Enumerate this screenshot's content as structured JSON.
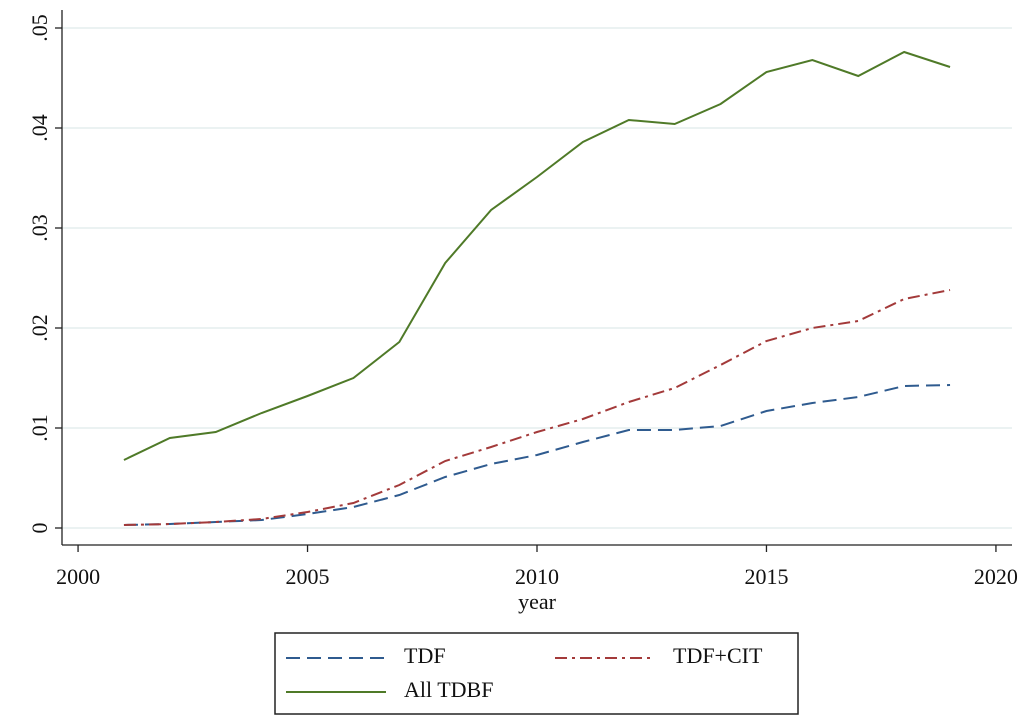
{
  "chart_data": {
    "type": "line",
    "x_label": "year",
    "x": [
      2001,
      2002,
      2003,
      2004,
      2005,
      2006,
      2007,
      2008,
      2009,
      2010,
      2011,
      2012,
      2013,
      2014,
      2015,
      2016,
      2017,
      2018,
      2019
    ],
    "series": [
      {
        "name": "TDF",
        "color": "#2f5b8f",
        "dash": "dash",
        "values": [
          0.0003,
          0.0004,
          0.0006,
          0.0008,
          0.0014,
          0.0021,
          0.0033,
          0.0051,
          0.0064,
          0.0073,
          0.0086,
          0.0098,
          0.0098,
          0.0102,
          0.0117,
          0.0125,
          0.0131,
          0.0142,
          0.0143
        ]
      },
      {
        "name": "TDF+CIT",
        "color": "#a33a3a",
        "dash": "dashdot",
        "values": [
          0.0003,
          0.0004,
          0.0006,
          0.0009,
          0.0016,
          0.0025,
          0.0043,
          0.0067,
          0.0081,
          0.0096,
          0.0109,
          0.0126,
          0.014,
          0.0163,
          0.0187,
          0.02,
          0.0207,
          0.0229,
          0.0238
        ]
      },
      {
        "name": "All TDBF",
        "color": "#4f7a28",
        "dash": "solid",
        "values": [
          0.0068,
          0.009,
          0.0096,
          0.0115,
          0.0132,
          0.015,
          0.0186,
          0.0265,
          0.0318,
          0.0351,
          0.0386,
          0.0408,
          0.0404,
          0.0424,
          0.0456,
          0.0468,
          0.0452,
          0.0476,
          0.0461
        ]
      }
    ],
    "xlim": [
      1999.65,
      2020.35
    ],
    "ylim": [
      -0.0017,
      0.0518
    ],
    "xticks": [
      2000,
      2005,
      2010,
      2015,
      2020
    ],
    "yticks": [
      0,
      {
        "value": 0.01,
        "label": ".01"
      },
      {
        "value": 0.02,
        "label": ".02"
      },
      {
        "value": 0.03,
        "label": ".03"
      },
      {
        "value": 0.04,
        "label": ".04"
      },
      {
        "value": 0.05,
        "label": ".05"
      }
    ],
    "grid": true,
    "legend": "bottom"
  }
}
